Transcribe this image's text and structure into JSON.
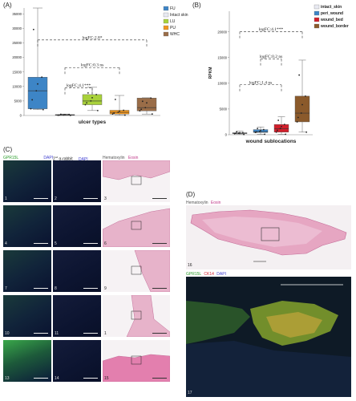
{
  "panels": {
    "A": "(A)",
    "B": "(B)",
    "C": "(C)",
    "D": "(D)"
  },
  "chart_data": [
    {
      "type": "box",
      "xlabel": "ulcer types",
      "ylabel": "",
      "ylim": [
        0,
        37000
      ],
      "yticks": [
        "0",
        "5000",
        "10000",
        "15000",
        "20000",
        "25000",
        "30000",
        "35000"
      ],
      "categories": [
        "FU",
        "Intact skin",
        "LU",
        "PU",
        "WHC"
      ],
      "colors": {
        "FU": "#3d85c6",
        "Intact skin": "#e8eaf2",
        "LU": "#a8d13a",
        "PU": "#f0961e",
        "WHC": "#9a6d48"
      },
      "series": [
        {
          "name": "FU",
          "q1": 2300,
          "median": 8500,
          "q3": 13200,
          "min": 2000,
          "max": 37000
        },
        {
          "name": "Intact skin",
          "q1": 80,
          "median": 180,
          "q3": 350,
          "min": 20,
          "max": 500
        },
        {
          "name": "LU",
          "q1": 3700,
          "median": 5000,
          "q3": 7200,
          "min": 1700,
          "max": 9700
        },
        {
          "name": "PU",
          "q1": 500,
          "median": 1100,
          "q3": 1800,
          "min": 100,
          "max": 6900
        },
        {
          "name": "WHC",
          "q1": 1600,
          "median": 2700,
          "q3": 6000,
          "min": 500,
          "max": 6100
        }
      ],
      "annotations": [
        {
          "text": "logFC:2.8*",
          "between": [
            "FU",
            "WHC"
          ],
          "y": 26000
        },
        {
          "text": "logFC:0.3 ns",
          "between": [
            "Intact skin",
            "PU"
          ],
          "y": 16500
        },
        {
          "text": "logFC:4.1***",
          "between": [
            "Intact skin",
            "LU"
          ],
          "y": 9500
        }
      ],
      "legend": [
        "FU",
        "Intact skin",
        "LU",
        "PU",
        "WHC"
      ],
      "legend_position": "right"
    },
    {
      "type": "box",
      "xlabel": "wound sublocations",
      "ylabel": "RPKM",
      "ylim": [
        0,
        24000
      ],
      "yticks": [
        "0",
        "5000",
        "10000",
        "15000",
        "20000"
      ],
      "categories": [
        "intact_skin",
        "peri_wound",
        "wound_bed",
        "wound_border"
      ],
      "colors": {
        "intact_skin": "#e8eaf2",
        "peri_wound": "#3d85c6",
        "wound_bed": "#d21f2b",
        "wound_border": "#8b5a2b"
      },
      "series": [
        {
          "name": "intact_skin",
          "q1": 200,
          "median": 300,
          "q3": 400,
          "min": 50,
          "max": 700
        },
        {
          "name": "peri_wound",
          "q1": 450,
          "median": 600,
          "q3": 1000,
          "min": 100,
          "max": 1500
        },
        {
          "name": "wound_bed",
          "q1": 500,
          "median": 1200,
          "q3": 2000,
          "min": 100,
          "max": 3500
        },
        {
          "name": "wound_border",
          "q1": 2500,
          "median": 4200,
          "q3": 7500,
          "min": 500,
          "max": 14500
        }
      ],
      "annotations": [
        {
          "text": "logFC:4.1***",
          "between": [
            "intact_skin",
            "wound_border"
          ],
          "y": 20000
        },
        {
          "text": "logFC:0.2 ns",
          "between": [
            "peri_wound",
            "wound_bed"
          ],
          "y": 14700
        },
        {
          "text": "logFC:1.4 ns",
          "between": [
            "intact_skin",
            "wound_bed"
          ],
          "y": 9700
        }
      ],
      "legend": [
        "intact_skin",
        "peri_wound",
        "wound_bed",
        "wound_border"
      ],
      "legend_position": "right"
    }
  ],
  "figC": {
    "col1_label": "GPR15L",
    "col1_label2": "DAPI",
    "col2_label": "2",
    "col2_label_sup": "nd",
    "col2_label_rest": "α-rabbit",
    "col2_label2": "DAPI",
    "col3_label": "Hematoxylin",
    "col3_label2": "Eosin",
    "numbers": [
      "1",
      "2",
      "3",
      "4",
      "5",
      "6",
      "7",
      "8",
      "9",
      "10",
      "11",
      "1",
      "13",
      "14",
      "15"
    ]
  },
  "figD": {
    "top_label": "Hematoxylin",
    "top_label2": "Eosin",
    "top_num": "16",
    "bot_label": "GPR15L",
    "bot_label2": "CK14",
    "bot_label3": "DAPI",
    "bot_num": "17"
  }
}
